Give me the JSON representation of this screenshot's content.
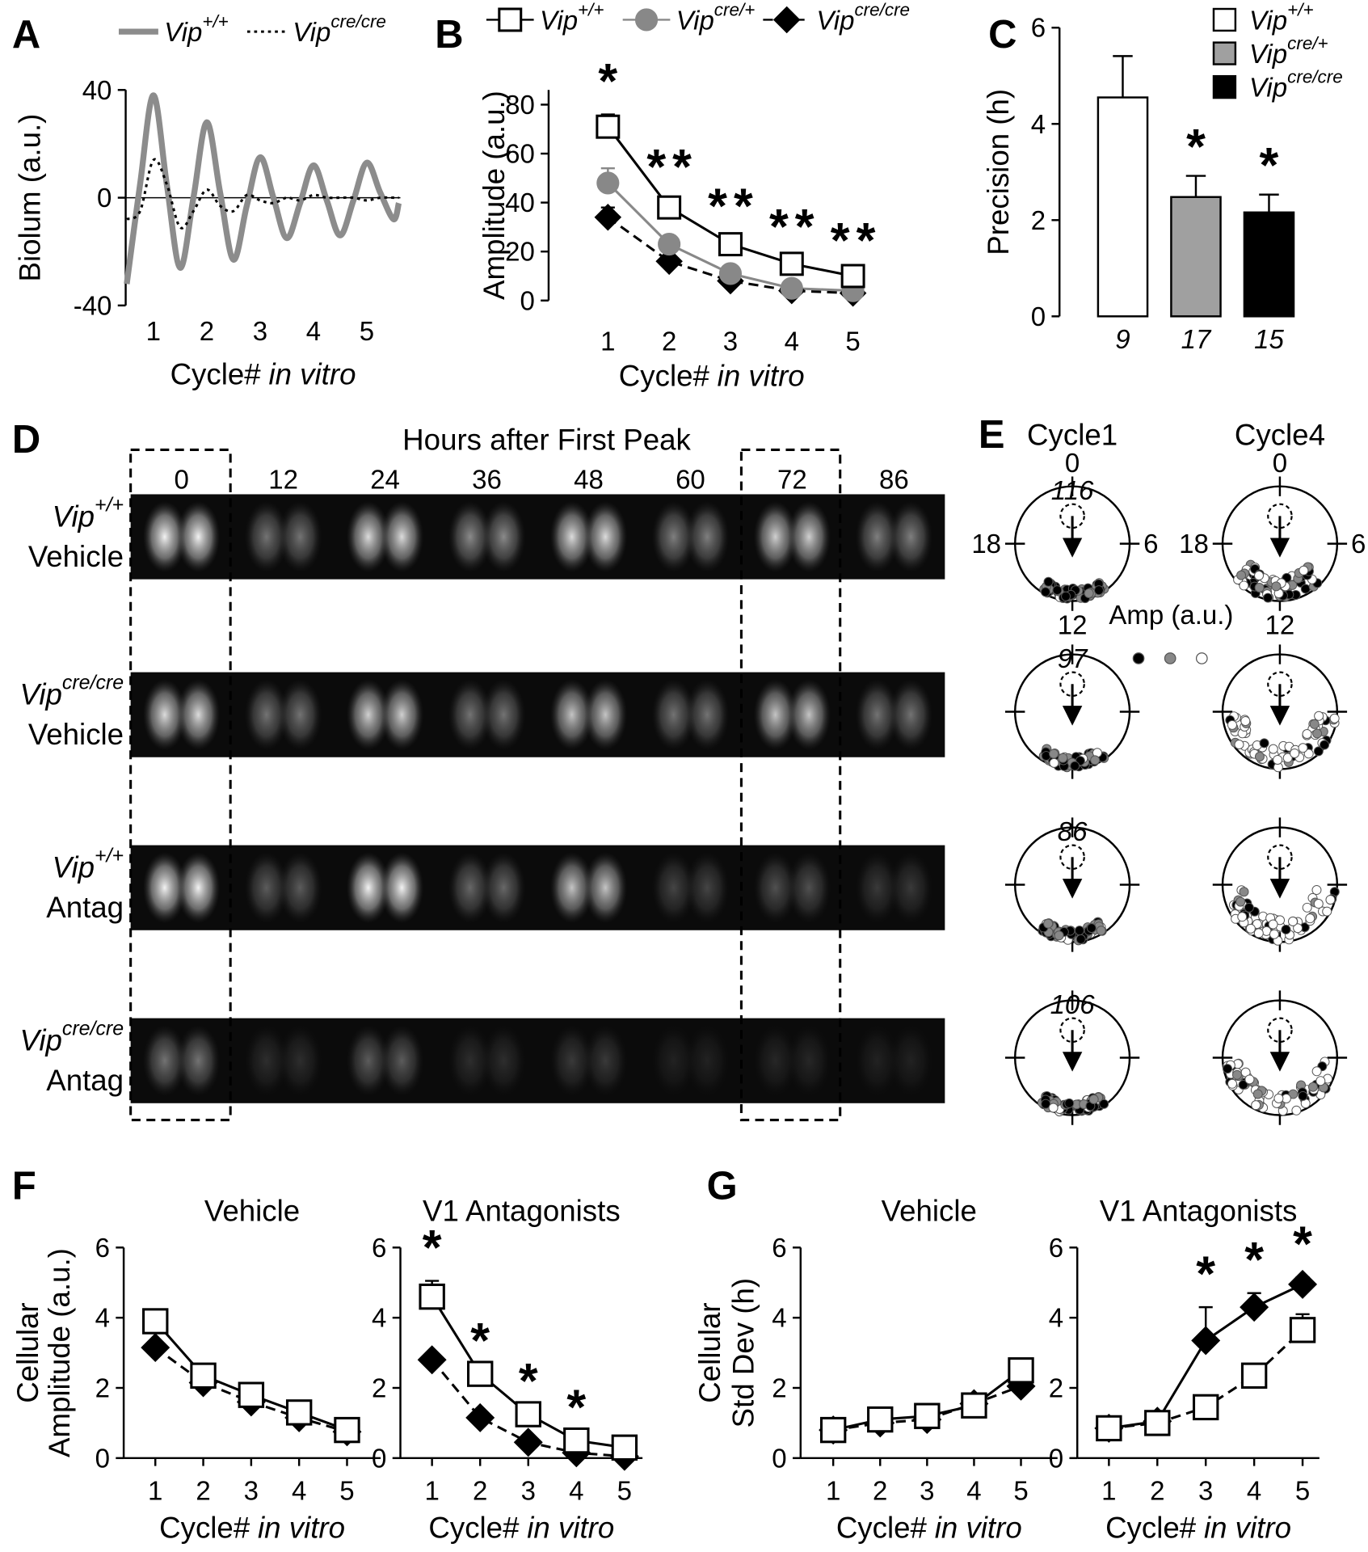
{
  "chart_data": [
    {
      "type": "line",
      "label": "A",
      "ylabel": "Biolum (a.u.)",
      "xlabel": "Cycle#",
      "xlabel_italic": "in vitro",
      "x": [
        0.5,
        0.75,
        1,
        1.25,
        1.5,
        1.75,
        2,
        2.25,
        2.5,
        2.75,
        3,
        3.25,
        3.5,
        3.75,
        4,
        4.25,
        4.5,
        4.75,
        5,
        5.25,
        5.5,
        5.6
      ],
      "xlim": [
        0.48,
        5.63
      ],
      "xticks": [
        1,
        2,
        3,
        4,
        5
      ],
      "ylim": [
        -40,
        40
      ],
      "yticks": [
        -40,
        0,
        40
      ],
      "zero_line": true,
      "smooth": true,
      "series": [
        {
          "name": "Vip",
          "name_sup": "+/+",
          "color": "#8c8c8c",
          "line_width": 6,
          "line_style": "solid",
          "values": [
            -32,
            5,
            38,
            5,
            -26,
            0,
            28,
            2,
            -23,
            -3,
            15,
            0,
            -15,
            -2,
            12,
            -1,
            -14,
            -1,
            13,
            2,
            -8,
            -2
          ]
        },
        {
          "name": "Vip",
          "name_sup": "cre/cre",
          "color": "#000000",
          "line_width": 2.5,
          "line_style": "dotted",
          "values": [
            -8,
            -5,
            14,
            5,
            -11,
            -5,
            3,
            -3,
            -5,
            1,
            -1,
            -2,
            0,
            -1,
            1,
            0,
            0,
            0,
            -1,
            0,
            0,
            0
          ]
        }
      ]
    },
    {
      "type": "line",
      "label": "B",
      "ylabel": "Amplitude (a.u.)",
      "xlabel": "Cycle#",
      "xlabel_italic": "in vitro",
      "categories": [
        "1",
        "2",
        "3",
        "4",
        "5"
      ],
      "ylim": [
        0,
        86
      ],
      "yticks": [
        0,
        20,
        40,
        60,
        80
      ],
      "series": [
        {
          "name": "Vip",
          "name_sup": "+/+",
          "color": "#000000",
          "marker": "square",
          "marker_fill": "#ffffff",
          "line_style": "solid",
          "values": [
            71,
            38,
            23,
            15,
            10
          ],
          "errors": [
            5,
            3,
            2,
            1.5,
            1
          ]
        },
        {
          "name": "Vip",
          "name_sup": "cre/+",
          "color": "#888888",
          "marker": "circle",
          "marker_fill": "#888888",
          "line_style": "solid",
          "values": [
            48,
            23,
            11,
            5,
            4
          ],
          "errors": [
            6,
            2,
            1,
            1,
            1
          ],
          "stars": [
            null,
            "*",
            "*",
            "*",
            "*"
          ],
          "star_color": "#808080"
        },
        {
          "name": "Vip",
          "name_sup": "cre/cre",
          "color": "#000000",
          "marker": "diamond",
          "marker_fill": "#000000",
          "line_style": "dashed",
          "values": [
            34,
            16,
            8,
            4,
            3
          ],
          "errors": [
            4,
            2,
            1,
            1,
            1
          ],
          "stars": [
            "*",
            "*",
            "*",
            "*",
            "*"
          ],
          "star_color": "#000000"
        }
      ]
    },
    {
      "type": "bar",
      "label": "C",
      "ylabel": "Precision (h)",
      "categories": [
        "9",
        "17",
        "15"
      ],
      "ylim": [
        0,
        6
      ],
      "yticks": [
        0,
        2,
        4,
        6
      ],
      "values": [
        4.55,
        2.48,
        2.16
      ],
      "errors": [
        0.86,
        0.44,
        0.37
      ],
      "colors": [
        "#ffffff",
        "#a0a0a0",
        "#000000"
      ],
      "stars": [
        null,
        "*",
        "*"
      ],
      "star_color": "#000000",
      "legend": [
        {
          "name": "Vip",
          "name_sup": "+/+"
        },
        {
          "name": "Vip",
          "name_sup": "cre/+"
        },
        {
          "name": "Vip",
          "name_sup": "cre/cre"
        }
      ]
    },
    {
      "type": "line",
      "label": "F",
      "subtitle": "Vehicle",
      "ylabel": [
        "Cellular",
        "Amplitude (a.u.)"
      ],
      "xlabel": "Cycle#",
      "xlabel_italic": "in vitro",
      "categories": [
        "1",
        "2",
        "3",
        "4",
        "5"
      ],
      "ylim": [
        0,
        6
      ],
      "yticks": [
        0,
        2,
        4,
        6
      ],
      "series": [
        {
          "color": "#000000",
          "marker": "square",
          "marker_fill": "#ffffff",
          "line_style": "solid",
          "values": [
            3.9,
            2.35,
            1.8,
            1.3,
            0.8
          ]
        },
        {
          "color": "#000000",
          "marker": "diamond",
          "marker_fill": "#000000",
          "line_style": "dashed",
          "values": [
            3.15,
            2.15,
            1.6,
            1.15,
            0.75
          ]
        }
      ]
    },
    {
      "type": "line",
      "subtitle": "V1 Antagonists",
      "xlabel": "Cycle#",
      "xlabel_italic": "in vitro",
      "categories": [
        "1",
        "2",
        "3",
        "4",
        "5"
      ],
      "ylim": [
        0,
        6
      ],
      "yticks": [
        0,
        2,
        4,
        6
      ],
      "series": [
        {
          "color": "#000000",
          "marker": "square",
          "marker_fill": "#ffffff",
          "line_style": "solid",
          "values": [
            4.6,
            2.4,
            1.25,
            0.5,
            0.3
          ],
          "errors": [
            0.45,
            null,
            null,
            null,
            null
          ]
        },
        {
          "color": "#000000",
          "marker": "diamond",
          "marker_fill": "#000000",
          "line_style": "dashed",
          "values": [
            2.8,
            1.15,
            0.45,
            0.15,
            0.05
          ],
          "stars": [
            "*",
            "*",
            "*",
            "*",
            null
          ],
          "star_color": "#000000"
        }
      ]
    },
    {
      "type": "line",
      "label": "G",
      "subtitle": "Vehicle",
      "ylabel": [
        "Cellular",
        "Std Dev (h)"
      ],
      "xlabel": "Cycle#",
      "xlabel_italic": "in vitro",
      "categories": [
        "1",
        "2",
        "3",
        "4",
        "5"
      ],
      "ylim": [
        0,
        6
      ],
      "yticks": [
        0,
        2,
        4,
        6
      ],
      "series": [
        {
          "color": "#000000",
          "marker": "square",
          "marker_fill": "#ffffff",
          "line_style": "solid",
          "values": [
            0.8,
            1.1,
            1.2,
            1.5,
            2.5
          ],
          "errors": [
            null,
            null,
            null,
            null,
            0.3
          ]
        },
        {
          "color": "#000000",
          "marker": "diamond",
          "marker_fill": "#000000",
          "line_style": "dashed",
          "values": [
            0.8,
            1.0,
            1.1,
            1.55,
            2.05
          ]
        }
      ]
    },
    {
      "type": "line",
      "subtitle": "V1 Antagonists",
      "xlabel": "Cycle#",
      "xlabel_italic": "in vitro",
      "categories": [
        "1",
        "2",
        "3",
        "4",
        "5"
      ],
      "ylim": [
        0,
        6
      ],
      "yticks": [
        0,
        2,
        4,
        6
      ],
      "series": [
        {
          "color": "#000000",
          "marker": "square",
          "marker_fill": "#ffffff",
          "line_style": "dashed",
          "values": [
            0.85,
            1.0,
            1.45,
            2.35,
            3.65
          ],
          "errors": [
            null,
            null,
            null,
            null,
            0.45
          ]
        },
        {
          "color": "#000000",
          "marker": "diamond",
          "marker_fill": "#000000",
          "line_style": "solid",
          "values": [
            0.85,
            1.05,
            3.35,
            4.3,
            4.95
          ],
          "errors": [
            null,
            null,
            0.95,
            0.4,
            0.2
          ],
          "stars": [
            null,
            null,
            "*",
            "*",
            "*"
          ],
          "star_color": "#000000"
        }
      ]
    }
  ],
  "panel_d": {
    "label": "D",
    "title": "Hours after First Peak",
    "hours": [
      "0",
      "12",
      "24",
      "36",
      "48",
      "60",
      "72",
      "86"
    ],
    "rows": [
      {
        "gene": "Vip",
        "genotype": "+/+",
        "treatment": "Vehicle"
      },
      {
        "gene": "Vip",
        "genotype": "cre/cre",
        "treatment": "Vehicle"
      },
      {
        "gene": "Vip",
        "genotype": "+/+",
        "treatment": "Antag"
      },
      {
        "gene": "Vip",
        "genotype": "cre/cre",
        "treatment": "Antag"
      }
    ]
  },
  "panel_e": {
    "label": "E",
    "columns": [
      "Cycle1",
      "Cycle4"
    ],
    "clock": {
      "top": "0",
      "right": "6",
      "bottom": "12",
      "left": "18"
    },
    "legend_title": "Amp (a.u.)",
    "legend_colors": [
      "#000000",
      "#888888",
      "#ffffff"
    ],
    "counts": [
      116,
      97,
      86,
      106
    ]
  }
}
